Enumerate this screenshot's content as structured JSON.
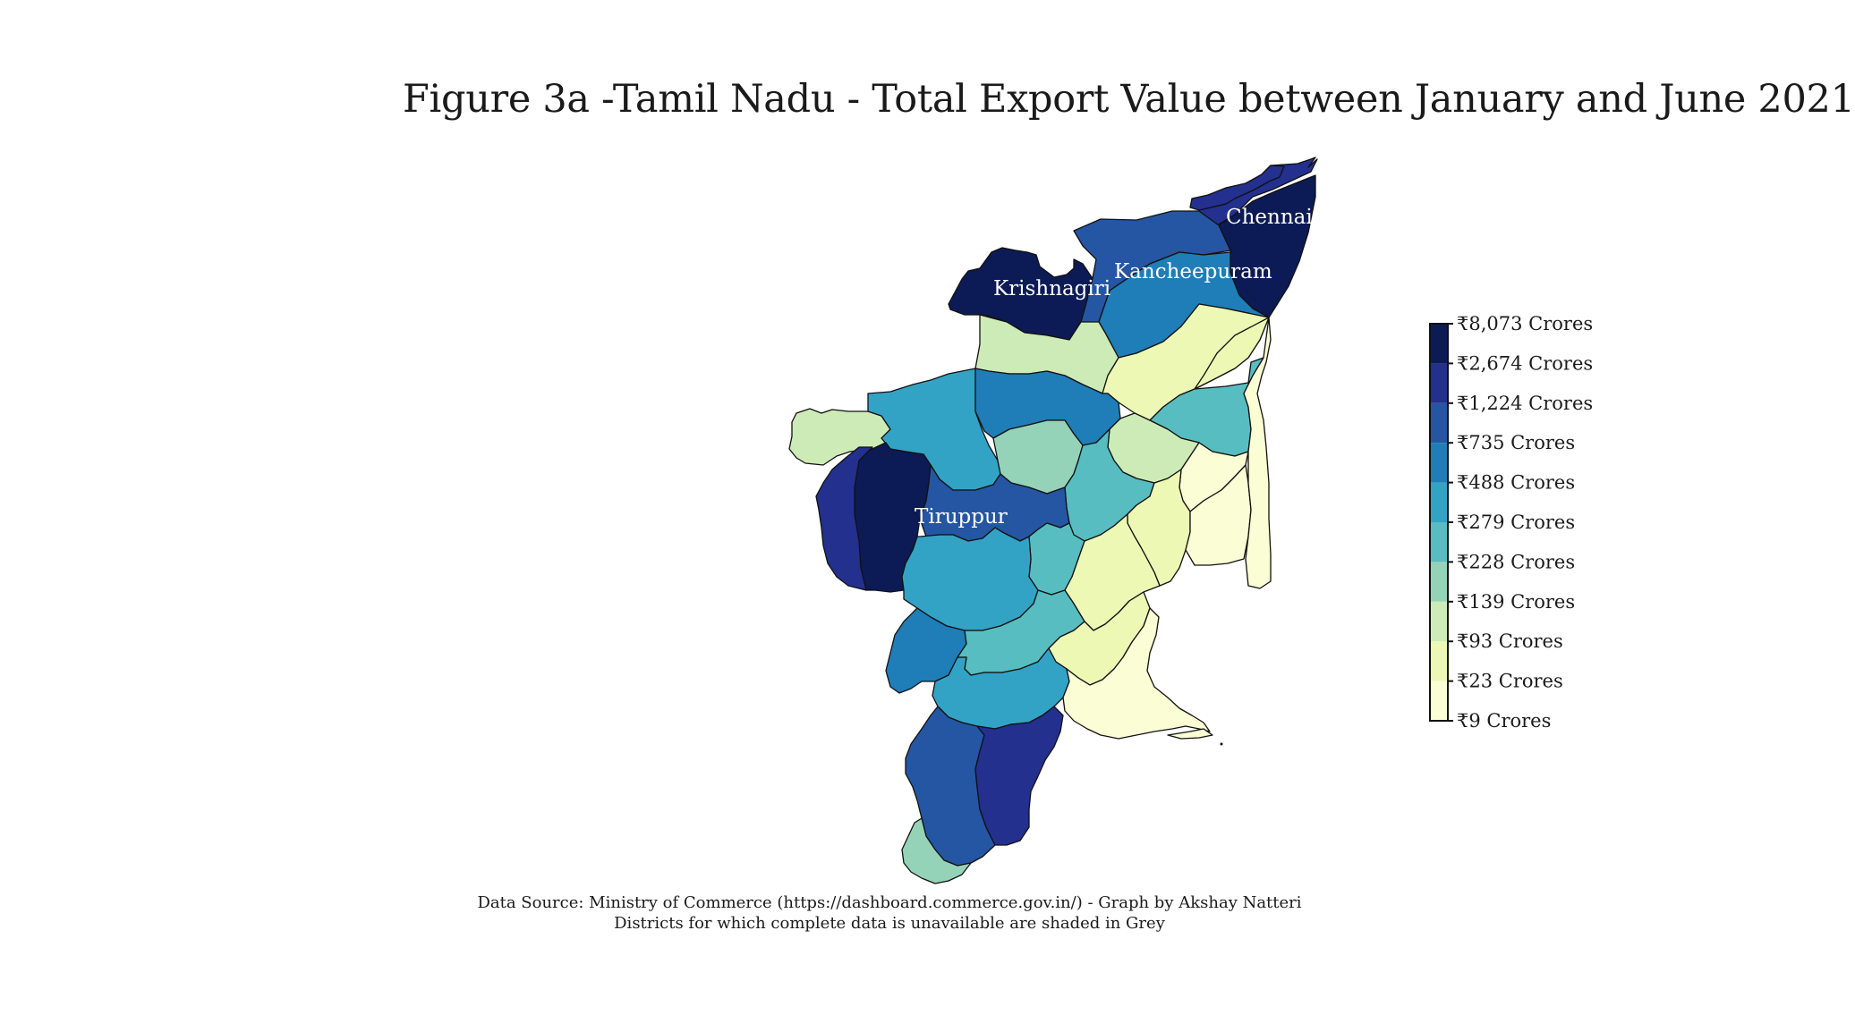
{
  "title": "Figure 3a -Tamil Nadu - Total Export Value between January and June 2021",
  "labels": {
    "chennai": "Chennai",
    "kancheepuram": "Kancheepuram",
    "krishnagiri": "Krishnagiri",
    "tiruppur": "Tiruppur"
  },
  "legend": {
    "items": [
      "₹8,073 Crores",
      "₹2,674 Crores",
      "₹1,224 Crores",
      "₹735 Crores",
      "₹488 Crores",
      "₹279 Crores",
      "₹228 Crores",
      "₹139 Crores",
      "₹93 Crores",
      "₹23 Crores",
      "₹9 Crores"
    ],
    "colors": [
      "#0c1b55",
      "#23308e",
      "#2456a3",
      "#1f7db8",
      "#33a3c5",
      "#57bdc1",
      "#95d3b8",
      "#cdebb6",
      "#edf8b4",
      "#fbfdd4"
    ]
  },
  "footer": {
    "source": "Data Source:  Ministry of Commerce (https://dashboard.commerce.gov.in/) - Graph by Akshay Natteri",
    "note": "Districts for which complete data is unavailable are shaded in Grey"
  }
}
